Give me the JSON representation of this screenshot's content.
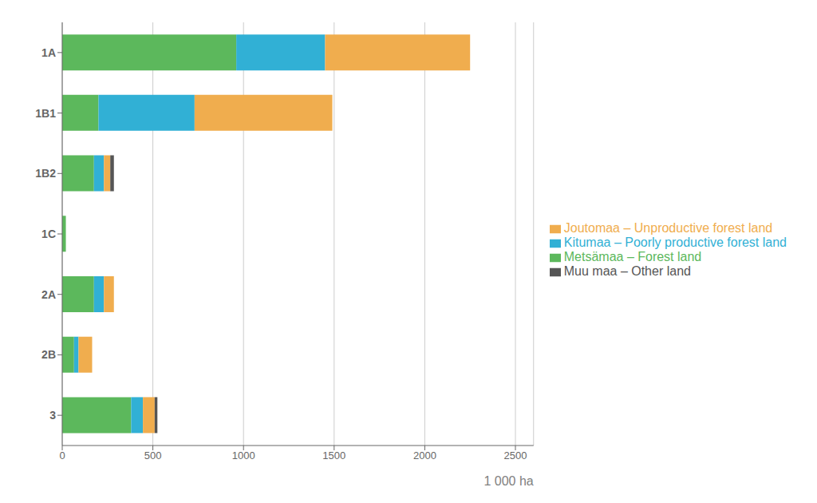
{
  "chart_data": {
    "type": "bar",
    "orientation": "horizontal",
    "stacked": true,
    "categories": [
      "1A",
      "1B1",
      "1B2",
      "1C",
      "2A",
      "2B",
      "3"
    ],
    "series": [
      {
        "name": "Metsämaa – Forest land",
        "color": "#5cb85c",
        "values": [
          960,
          200,
          175,
          20,
          175,
          65,
          380
        ]
      },
      {
        "name": "Kitumaa – Poorly productive forest land",
        "color": "#31b0d5",
        "values": [
          490,
          530,
          55,
          0,
          55,
          25,
          65
        ]
      },
      {
        "name": "Joutomaa – Unproductive forest land",
        "color": "#f0ad4e",
        "values": [
          800,
          760,
          35,
          0,
          55,
          75,
          65
        ]
      },
      {
        "name": "Muu maa – Other land",
        "color": "#555555",
        "values": [
          0,
          0,
          20,
          0,
          0,
          0,
          15
        ]
      }
    ],
    "xlabel": "1 000 ha",
    "xlim": [
      0,
      2600
    ],
    "xticks": [
      0,
      500,
      1000,
      1500,
      2000,
      2500
    ],
    "grid": true,
    "legend": "right"
  }
}
